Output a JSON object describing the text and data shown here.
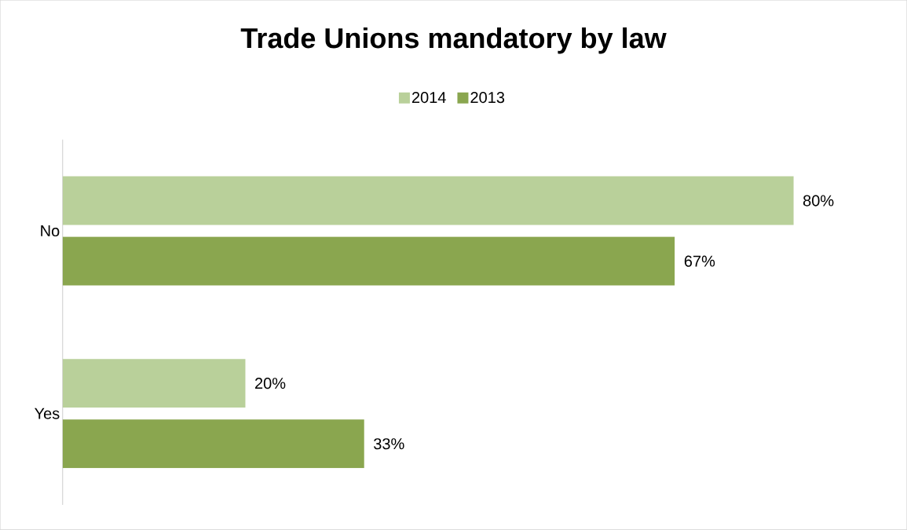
{
  "chart_data": {
    "type": "bar",
    "orientation": "horizontal",
    "title": "Trade Unions mandatory by law",
    "categories": [
      "No",
      "Yes"
    ],
    "series": [
      {
        "name": "2014",
        "color": "#b9d09a",
        "values": [
          80,
          20
        ],
        "value_labels": [
          "80%",
          "20%"
        ]
      },
      {
        "name": "2013",
        "color": "#8aa64f",
        "values": [
          67,
          33
        ],
        "value_labels": [
          "67%",
          "33%"
        ]
      }
    ],
    "xlim": [
      0,
      92
    ],
    "legend": "top",
    "tick_labels": "y"
  }
}
